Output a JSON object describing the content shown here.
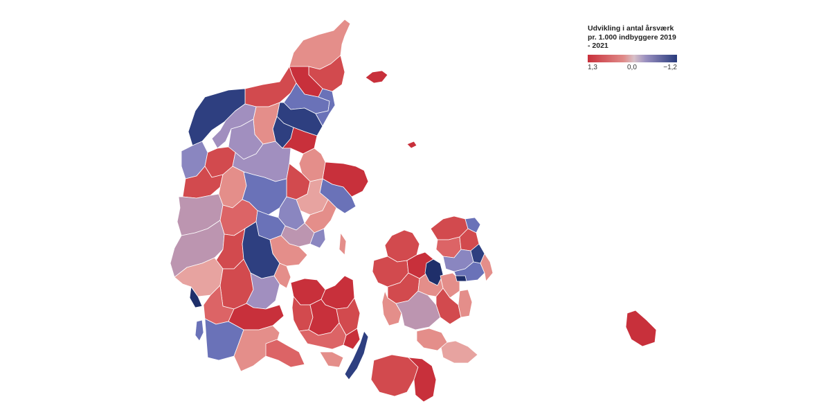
{
  "legend": {
    "title": "Udvikling i antal årsværk pr. 1.000 indbyggere 2019 - 2021",
    "tick_low": "1,3",
    "tick_mid": "0,0",
    "tick_high": "−1,2",
    "color_low": "#c8303b",
    "color_mid": "#d8c0c8",
    "color_high": "#283a7c"
  },
  "map": {
    "country": "Danmark",
    "unit": "municipality",
    "palette": {
      "dark_red": "#c8303b",
      "red": "#d24a4e",
      "mid_red": "#dc6466",
      "light_red": "#e48e8a",
      "pink": "#e7a3a0",
      "mauve": "#bc95b0",
      "lavender": "#a18fbf",
      "periwinkle": "#8a86c0",
      "blue": "#6a72b8",
      "dark_blue": "#2e3f80",
      "navy": "#1f2f6a"
    }
  }
}
